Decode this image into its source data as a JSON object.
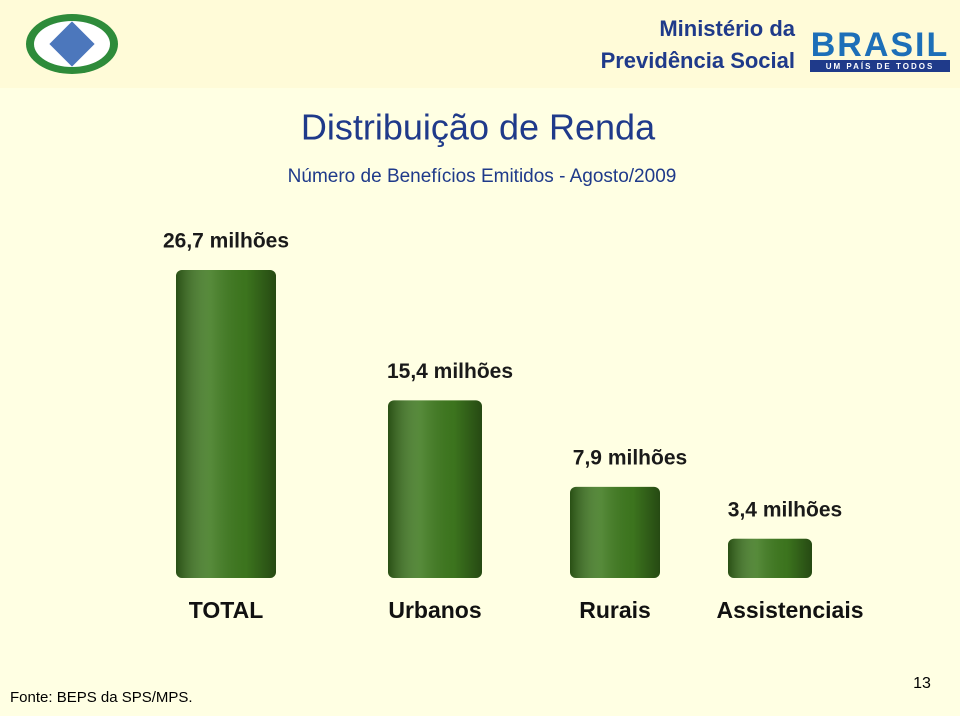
{
  "header": {
    "ministry_lines": [
      "Ministério da",
      "Previdência Social"
    ],
    "brand": "BRASIL",
    "tagline": "UM PAÍS DE TODOS"
  },
  "chart_data": {
    "type": "bar",
    "title": "Distribuição de Renda",
    "subtitle": "Número de Benefícios Emitidos - Agosto/2009",
    "categories": [
      "TOTAL",
      "Urbanos",
      "Rurais",
      "Assistenciais"
    ],
    "values": [
      26.7,
      15.4,
      7.9,
      3.4
    ],
    "value_labels": [
      "26,7 milhões",
      "15,4 milhões",
      "7,9 milhões",
      "3,4 milhões"
    ],
    "color": "#3f7a1f"
  },
  "footer": {
    "source": "Fonte: BEPS da SPS/MPS.",
    "page": "13"
  }
}
